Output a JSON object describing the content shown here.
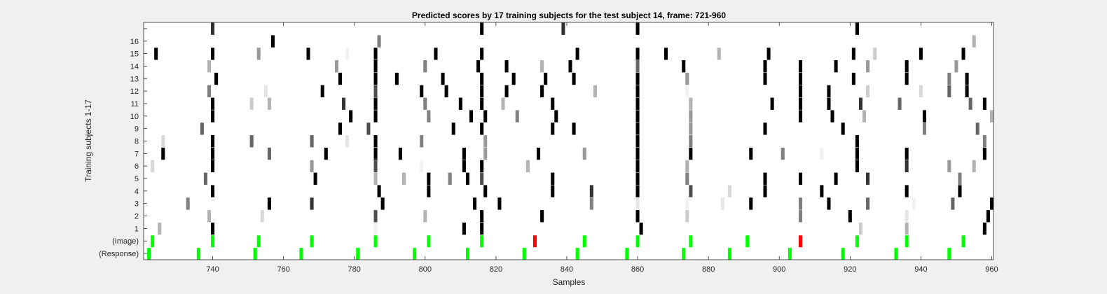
{
  "chart_data": {
    "type": "heatmap",
    "title": "Predicted scores by 17 training subjects for the test subject 14, frame: 721-960",
    "xlabel": "Samples",
    "ylabel": "Training subjects 1-17",
    "xlim": [
      721,
      960
    ],
    "x_ticks": [
      740,
      760,
      780,
      800,
      820,
      840,
      860,
      880,
      900,
      920,
      940,
      960
    ],
    "x_tick_labels": [
      "740",
      "760",
      "780",
      "800",
      "820",
      "840",
      "860",
      "880",
      "900",
      "920",
      "940",
      "960"
    ],
    "row_labels": [
      "(Response)",
      "(Image)",
      "1",
      "2",
      "3",
      "4",
      "5",
      "6",
      "7",
      "8",
      "9",
      "10",
      "11",
      "12",
      "13",
      "14",
      "15",
      "16",
      ""
    ],
    "grid": false,
    "colormap": "gray (white = 0, black = 1)",
    "response_color": "#00ff00",
    "error_color": "#ff0000",
    "response_marks": [
      722,
      736,
      752,
      765,
      781,
      797,
      812,
      828,
      843,
      857,
      873,
      886,
      903,
      918,
      933,
      948
    ],
    "image_marks": [
      {
        "x": 723,
        "status": "correct"
      },
      {
        "x": 740,
        "status": "correct"
      },
      {
        "x": 753,
        "status": "correct"
      },
      {
        "x": 768,
        "status": "correct"
      },
      {
        "x": 786,
        "status": "correct"
      },
      {
        "x": 801,
        "status": "correct"
      },
      {
        "x": 816,
        "status": "correct"
      },
      {
        "x": 831,
        "status": "error"
      },
      {
        "x": 845,
        "status": "correct"
      },
      {
        "x": 860,
        "status": "correct"
      },
      {
        "x": 875,
        "status": "correct"
      },
      {
        "x": 891,
        "status": "correct"
      },
      {
        "x": 906,
        "status": "error"
      },
      {
        "x": 922,
        "status": "correct"
      },
      {
        "x": 936,
        "status": "correct"
      },
      {
        "x": 952,
        "status": "correct"
      }
    ],
    "subject_scores": [
      {
        "subject": 1,
        "points": [
          [
            725,
            0.3
          ],
          [
            740,
            1
          ],
          [
            786,
            0.05
          ],
          [
            811,
            1
          ],
          [
            816,
            1
          ],
          [
            861,
            1
          ],
          [
            923,
            0.2
          ],
          [
            936,
            0.3
          ],
          [
            958,
            1
          ]
        ]
      },
      {
        "subject": 2,
        "points": [
          [
            739,
            0.3
          ],
          [
            754,
            0.15
          ],
          [
            786,
            0.7
          ],
          [
            800,
            0.3
          ],
          [
            816,
            1
          ],
          [
            833,
            1
          ],
          [
            860,
            1
          ],
          [
            874,
            0.2
          ],
          [
            906,
            0.5
          ],
          [
            920,
            1
          ],
          [
            936,
            0.1
          ],
          [
            959,
            1
          ]
        ]
      },
      {
        "subject": 3,
        "points": [
          [
            733,
            0.5
          ],
          [
            756,
            1
          ],
          [
            768,
            0.8
          ],
          [
            788,
            1
          ],
          [
            814,
            1
          ],
          [
            821,
            1
          ],
          [
            847,
            0.5
          ],
          [
            860,
            0.1
          ],
          [
            874,
            0.05
          ],
          [
            884,
            0.1
          ],
          [
            892,
            1
          ],
          [
            906,
            0.5
          ],
          [
            914,
            1
          ],
          [
            925,
            0.6
          ],
          [
            938,
            0.05
          ],
          [
            949,
            0.6
          ],
          [
            960,
            1
          ]
        ]
      },
      {
        "subject": 4,
        "points": [
          [
            740,
            1
          ],
          [
            787,
            1
          ],
          [
            801,
            1
          ],
          [
            817,
            1
          ],
          [
            836,
            1
          ],
          [
            847,
            0.8
          ],
          [
            860,
            1
          ],
          [
            875,
            0.7
          ],
          [
            886,
            0.15
          ],
          [
            896,
            1
          ],
          [
            912,
            1
          ],
          [
            936,
            1
          ],
          [
            951,
            1
          ]
        ]
      },
      {
        "subject": 5,
        "points": [
          [
            738,
            0.6
          ],
          [
            769,
            1
          ],
          [
            786,
            0.3
          ],
          [
            794,
            0.3
          ],
          [
            801,
            1
          ],
          [
            807,
            0.5
          ],
          [
            812,
            1
          ],
          [
            816,
            0.7
          ],
          [
            836,
            1
          ],
          [
            860,
            1
          ],
          [
            874,
            0.5
          ],
          [
            896,
            1
          ],
          [
            906,
            1
          ],
          [
            916,
            1
          ],
          [
            925,
            0.8
          ],
          [
            951,
            0.5
          ]
        ]
      },
      {
        "subject": 6,
        "points": [
          [
            723,
            0.15
          ],
          [
            740,
            1
          ],
          [
            768,
            0.4
          ],
          [
            786,
            0.7
          ],
          [
            799,
            0.05
          ],
          [
            811,
            1
          ],
          [
            816,
            1
          ],
          [
            829,
            0.3
          ],
          [
            860,
            1
          ],
          [
            874,
            0.3
          ],
          [
            922,
            1
          ],
          [
            936,
            0.8
          ],
          [
            948,
            0.4
          ],
          [
            955,
            0.3
          ]
        ]
      },
      {
        "subject": 7,
        "points": [
          [
            726,
            1
          ],
          [
            740,
            1
          ],
          [
            756,
            0.6
          ],
          [
            772,
            1
          ],
          [
            786,
            1
          ],
          [
            793,
            1
          ],
          [
            811,
            1
          ],
          [
            817,
            0.4
          ],
          [
            832,
            1
          ],
          [
            845,
            0.4
          ],
          [
            860,
            1
          ],
          [
            875,
            1
          ],
          [
            892,
            1
          ],
          [
            901,
            0.5
          ],
          [
            912,
            0.05
          ],
          [
            922,
            1
          ],
          [
            936,
            1
          ],
          [
            958,
            1
          ]
        ]
      },
      {
        "subject": 8,
        "points": [
          [
            726,
            0.15
          ],
          [
            740,
            1
          ],
          [
            751,
            0.6
          ],
          [
            768,
            0.6
          ],
          [
            778,
            0.1
          ],
          [
            786,
            1
          ],
          [
            799,
            0.5
          ],
          [
            817,
            0.4
          ],
          [
            860,
            1
          ],
          [
            875,
            0.5
          ],
          [
            922,
            1
          ],
          [
            958,
            0.5
          ]
        ]
      },
      {
        "subject": 9,
        "points": [
          [
            737,
            0.6
          ],
          [
            776,
            1
          ],
          [
            784,
            0.7
          ],
          [
            808,
            1
          ],
          [
            816,
            1
          ],
          [
            836,
            1
          ],
          [
            842,
            1
          ],
          [
            860,
            1
          ],
          [
            875,
            0.4
          ],
          [
            896,
            1
          ],
          [
            918,
            1
          ],
          [
            941,
            0.5
          ],
          [
            956,
            0.6
          ]
        ]
      },
      {
        "subject": 10,
        "points": [
          [
            740,
            1
          ],
          [
            779,
            1
          ],
          [
            786,
            1
          ],
          [
            801,
            0.5
          ],
          [
            813,
            1
          ],
          [
            817,
            1
          ],
          [
            826,
            0.5
          ],
          [
            837,
            1
          ],
          [
            860,
            1
          ],
          [
            875,
            0.4
          ],
          [
            906,
            1
          ],
          [
            915,
            1
          ],
          [
            924,
            0.3
          ],
          [
            941,
            1
          ],
          [
            960,
            0.3
          ]
        ]
      },
      {
        "subject": 11,
        "points": [
          [
            740,
            1
          ],
          [
            751,
            0.2
          ],
          [
            756,
            0.3
          ],
          [
            777,
            0.8
          ],
          [
            786,
            1
          ],
          [
            800,
            0.5
          ],
          [
            810,
            1
          ],
          [
            816,
            1
          ],
          [
            822,
            0.3
          ],
          [
            836,
            1
          ],
          [
            860,
            1
          ],
          [
            875,
            0.3
          ],
          [
            898,
            1
          ],
          [
            906,
            1
          ],
          [
            914,
            1
          ],
          [
            923,
            0.8
          ],
          [
            934,
            0.6
          ],
          [
            954,
            0.6
          ],
          [
            958,
            1
          ]
        ]
      },
      {
        "subject": 12,
        "points": [
          [
            739,
            0.5
          ],
          [
            755,
            0.1
          ],
          [
            771,
            1
          ],
          [
            786,
            0.7
          ],
          [
            799,
            1
          ],
          [
            806,
            1
          ],
          [
            816,
            1
          ],
          [
            823,
            1
          ],
          [
            833,
            1
          ],
          [
            848,
            0.3
          ],
          [
            860,
            1
          ],
          [
            874,
            0.05
          ],
          [
            906,
            1
          ],
          [
            914,
            1
          ],
          [
            925,
            0.2
          ],
          [
            940,
            0.15
          ],
          [
            948,
            0.6
          ],
          [
            953,
            1
          ]
        ]
      },
      {
        "subject": 13,
        "points": [
          [
            741,
            1
          ],
          [
            776,
            1
          ],
          [
            786,
            1
          ],
          [
            792,
            1
          ],
          [
            805,
            1
          ],
          [
            816,
            1
          ],
          [
            825,
            1
          ],
          [
            834,
            1
          ],
          [
            842,
            1
          ],
          [
            860,
            1
          ],
          [
            874,
            0.4
          ],
          [
            896,
            1
          ],
          [
            906,
            1
          ],
          [
            921,
            1
          ],
          [
            936,
            1
          ],
          [
            948,
            0.5
          ],
          [
            953,
            1
          ]
        ]
      },
      {
        "subject": 14,
        "points": [
          [
            739,
            0.3
          ],
          [
            775,
            0.4
          ],
          [
            786,
            1
          ],
          [
            800,
            0.5
          ],
          [
            815,
            1
          ],
          [
            823,
            1
          ],
          [
            833,
            0.3
          ],
          [
            841,
            1
          ],
          [
            860,
            0.6
          ],
          [
            873,
            1
          ],
          [
            896,
            1
          ],
          [
            906,
            1
          ],
          [
            916,
            1
          ],
          [
            925,
            0.4
          ],
          [
            936,
            1
          ],
          [
            950,
            0.4
          ]
        ]
      },
      {
        "subject": 15,
        "points": [
          [
            724,
            1
          ],
          [
            740,
            1
          ],
          [
            753,
            0.4
          ],
          [
            767,
            1
          ],
          [
            778,
            0.05
          ],
          [
            786,
            1
          ],
          [
            803,
            1
          ],
          [
            816,
            1
          ],
          [
            843,
            1
          ],
          [
            860,
            1
          ],
          [
            868,
            1
          ],
          [
            883,
            0.3
          ],
          [
            897,
            1
          ],
          [
            921,
            1
          ],
          [
            927,
            0.2
          ],
          [
            940,
            1
          ],
          [
            952,
            1
          ]
        ]
      },
      {
        "subject": 16,
        "points": [
          [
            757,
            1
          ],
          [
            787,
            0.5
          ],
          [
            955,
            0.3
          ]
        ]
      },
      {
        "subject": 17,
        "points": [
          [
            740,
            0.8
          ],
          [
            816,
            1
          ],
          [
            839,
            0.8
          ],
          [
            860,
            1
          ],
          [
            922,
            1
          ]
        ]
      }
    ]
  }
}
